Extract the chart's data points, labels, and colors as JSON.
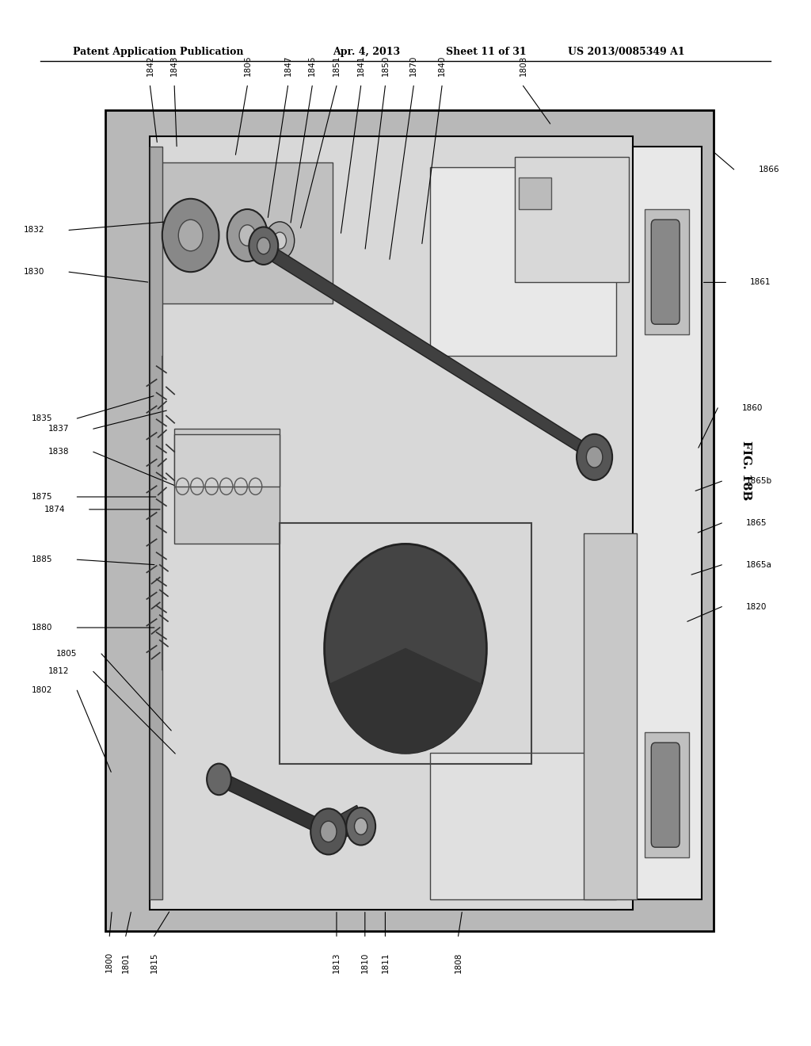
{
  "title": "Patent Application Publication",
  "title_right1": "Apr. 4, 2013",
  "title_right2": "Sheet 11 of 31",
  "title_right3": "US 2013/0085349 A1",
  "fig_label": "FIG. 18B",
  "bg_color": "#ffffff"
}
